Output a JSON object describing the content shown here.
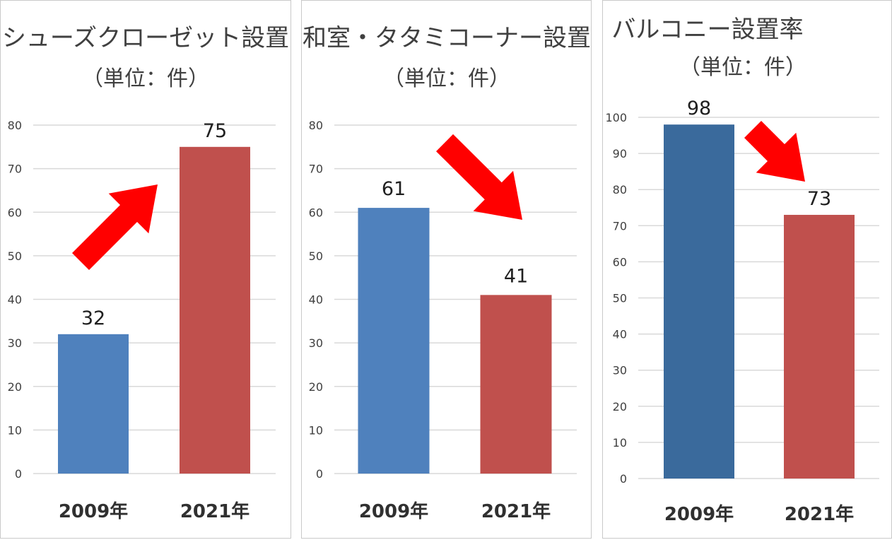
{
  "chart_data": [
    {
      "type": "bar",
      "title": "シューズクローゼット設置",
      "subtitle": "（単位：件）",
      "categories": [
        "2009年",
        "2021年"
      ],
      "values": [
        32,
        75
      ],
      "ylim": [
        0,
        80
      ],
      "yticks": [
        0,
        10,
        20,
        30,
        40,
        50,
        60,
        70,
        80
      ],
      "grid": true,
      "bar_colors": [
        "#4f81bd",
        "#c0504d"
      ],
      "annotation": "arrow-up-icon"
    },
    {
      "type": "bar",
      "title": "和室・タタミコーナー設置",
      "subtitle": "（単位：件）",
      "categories": [
        "2009年",
        "2021年"
      ],
      "values": [
        61,
        41
      ],
      "ylim": [
        0,
        80
      ],
      "yticks": [
        0,
        10,
        20,
        30,
        40,
        50,
        60,
        70,
        80
      ],
      "grid": true,
      "bar_colors": [
        "#4f81bd",
        "#c0504d"
      ],
      "annotation": "arrow-down-icon"
    },
    {
      "type": "bar",
      "title": "バルコニー設置率",
      "subtitle": "（単位：件）",
      "categories": [
        "2009年",
        "2021年"
      ],
      "values": [
        98,
        73
      ],
      "ylim": [
        0,
        100
      ],
      "yticks": [
        0,
        10,
        20,
        30,
        40,
        50,
        60,
        70,
        80,
        90,
        100
      ],
      "grid": true,
      "bar_colors": [
        "#3a6a9c",
        "#c0504d"
      ],
      "annotation": "arrow-down-icon"
    }
  ],
  "arrow_color": "#ff0000",
  "grid_color": "#d9d9d9"
}
